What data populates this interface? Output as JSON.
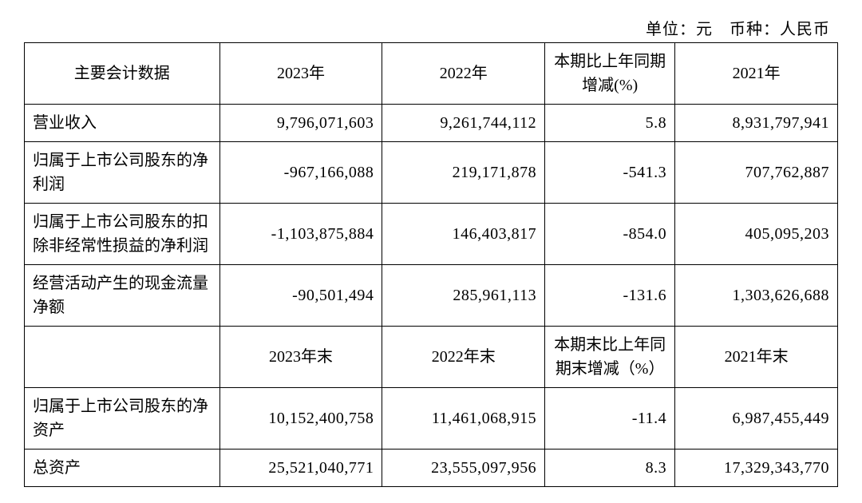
{
  "unit_line": "单位：元　币种：人民币",
  "header1": {
    "label": "主要会计数据",
    "y2023": "2023年",
    "y2022": "2022年",
    "pct": "本期比上年同期增减(%)",
    "y2021": "2021年"
  },
  "rows1": [
    {
      "label": "营业收入",
      "y2023": "9,796,071,603",
      "y2022": "9,261,744,112",
      "pct": "5.8",
      "y2021": "8,931,797,941"
    },
    {
      "label": "归属于上市公司股东的净利润",
      "y2023": "-967,166,088",
      "y2022": "219,171,878",
      "pct": "-541.3",
      "y2021": "707,762,887"
    },
    {
      "label": "归属于上市公司股东的扣除非经常性损益的净利润",
      "y2023": "-1,103,875,884",
      "y2022": "146,403,817",
      "pct": "-854.0",
      "y2021": "405,095,203"
    },
    {
      "label": "经营活动产生的现金流量净额",
      "y2023": "-90,501,494",
      "y2022": "285,961,113",
      "pct": "-131.6",
      "y2021": "1,303,626,688"
    }
  ],
  "header2": {
    "label": "",
    "y2023": "2023年末",
    "y2022": "2022年末",
    "pct": "本期末比上年同期末增减（%）",
    "y2021": "2021年末"
  },
  "rows2": [
    {
      "label": "归属于上市公司股东的净资产",
      "y2023": "10,152,400,758",
      "y2022": "11,461,068,915",
      "pct": "-11.4",
      "y2021": "6,987,455,449"
    },
    {
      "label": "总资产",
      "y2023": "25,521,040,771",
      "y2022": "23,555,097,956",
      "pct": "8.3",
      "y2021": "17,329,343,770"
    }
  ]
}
